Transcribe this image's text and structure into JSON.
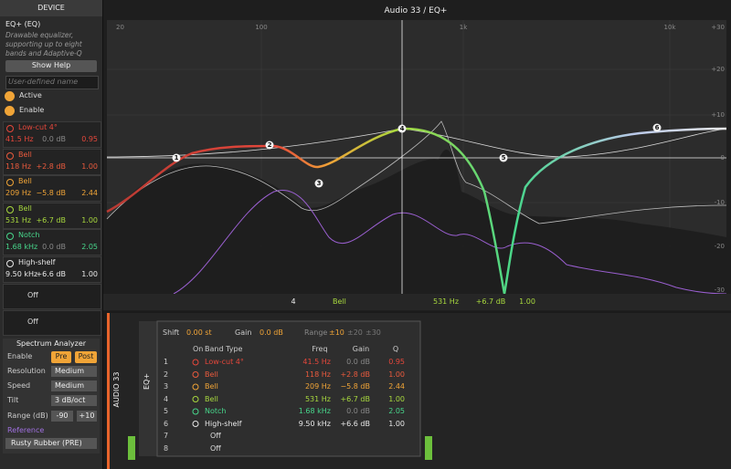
{
  "device_panel": {
    "header": "DEVICE",
    "name": "EQ+ (EQ)",
    "description": "Drawable equalizer, supporting up to eight bands and Adaptive-Q",
    "show_help": "Show Help",
    "name_placeholder": "User-defined name",
    "active": "Active",
    "enable": "Enable",
    "bands": [
      {
        "type": "Low-cut 4°",
        "freq": "41.5 Hz",
        "gain": "0.0 dB",
        "q": "0.95",
        "color": "#e5473b"
      },
      {
        "type": "Bell",
        "freq": "118 Hz",
        "gain": "+2.8 dB",
        "q": "1.00",
        "color": "#ea5a3d"
      },
      {
        "type": "Bell",
        "freq": "209 Hz",
        "gain": "−5.8 dB",
        "q": "2.44",
        "color": "#f0a437"
      },
      {
        "type": "Bell",
        "freq": "531 Hz",
        "gain": "+6.7 dB",
        "q": "1.00",
        "color": "#a8d83e"
      },
      {
        "type": "Notch",
        "freq": "1.68 kHz",
        "gain": "0.0 dB",
        "q": "2.05",
        "color": "#47d68b"
      },
      {
        "type": "High-shelf",
        "freq": "9.50 kHz",
        "gain": "+6.6 dB",
        "q": "1.00",
        "color": "#e8e8e8"
      },
      {
        "type": "Off",
        "color": "#dddddd"
      },
      {
        "type": "Off",
        "color": "#dddddd"
      }
    ]
  },
  "spectrum_analyzer": {
    "title": "Spectrum Analyzer",
    "enable_label": "Enable",
    "pre": "Pre",
    "post": "Post",
    "resolution_label": "Resolution",
    "resolution": "Medium",
    "speed_label": "Speed",
    "speed": "Medium",
    "tilt_label": "Tilt",
    "tilt": "3 dB/oct",
    "range_label": "Range (dB)",
    "range_min": "-90",
    "range_max": "+10",
    "reference_label": "Reference",
    "reference": "Rusty Rubber (PRE)"
  },
  "eq_display": {
    "title": "Audio 33 / EQ+",
    "freq_labels": [
      "20",
      "100",
      "1k",
      "10k"
    ],
    "db_labels": [
      "+30",
      "+20",
      "+10",
      "0",
      "-10",
      "-20",
      "-30"
    ],
    "selected": {
      "band": "4",
      "type": "Bell",
      "freq": "531 Hz",
      "gain": "+6.7 dB",
      "q": "1.00"
    }
  },
  "device_chain": {
    "track": "AUDIO 33",
    "device": "EQ+",
    "shift_label": "Shift",
    "shift": "0.00 st",
    "gain_label": "Gain",
    "gain": "0.0 dB",
    "range_label": "Range",
    "ranges": [
      "±10",
      "±20",
      "±30"
    ],
    "columns": [
      "On",
      "Band Type",
      "Freq",
      "Gain",
      "Q"
    ],
    "band_numbers": [
      "1",
      "2",
      "3",
      "4",
      "5",
      "6",
      "7",
      "8"
    ]
  }
}
